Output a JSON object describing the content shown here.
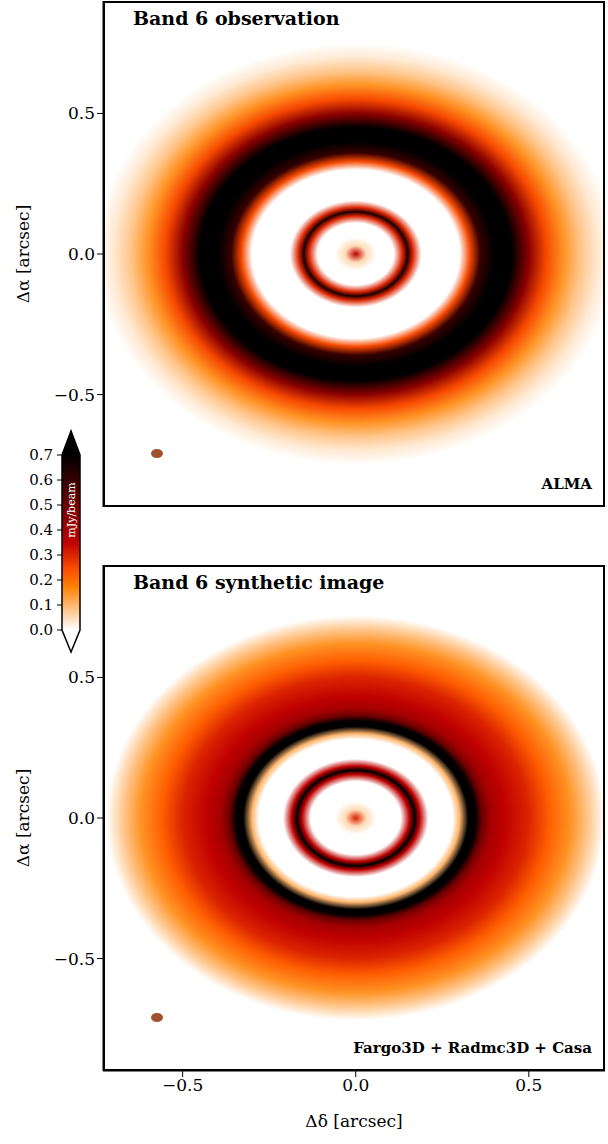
{
  "chart_data": [
    {
      "type": "heatmap",
      "title": "Band 6 observation",
      "annotation": "ALMA",
      "ylabel": "Δα [arcsec]",
      "xlim": [
        -0.73,
        0.72
      ],
      "ylim": [
        -0.9,
        0.9
      ],
      "yticks": [
        {
          "value": -0.5,
          "label": "−0.5"
        },
        {
          "value": 0,
          "label": "0.0"
        },
        0.5
      ],
      "tick_labels": "y",
      "image": {
        "center": [
          0,
          0
        ],
        "radius": [
          0,
          0.03,
          0.06,
          0.11,
          0.135,
          0.15,
          0.165,
          0.19,
          0.22,
          0.3,
          0.33,
          0.36,
          0.4,
          0.45,
          0.5,
          0.55,
          0.6,
          0.65,
          0.7,
          0.75
        ],
        "intensity": [
          0.35,
          0.05,
          0,
          0,
          0.3,
          0.65,
          0.3,
          0,
          0,
          0,
          0.25,
          0.6,
          0.75,
          0.7,
          0.45,
          0.25,
          0.15,
          0.08,
          0.03,
          0
        ]
      }
    },
    {
      "type": "heatmap",
      "title": "Band 6 synthetic image",
      "annotation": "Fargo3D + Radmc3D + Casa",
      "ylabel": "Δα [arcsec]",
      "xlabel": "Δδ [arcsec]",
      "xlim": [
        -0.73,
        0.72
      ],
      "ylim": [
        -0.9,
        0.9
      ],
      "xticks": [
        {
          "value": -0.5,
          "label": "−0.5"
        },
        {
          "value": 0,
          "label": "0.0"
        },
        0.5
      ],
      "yticks": [
        {
          "value": -0.5,
          "label": "−0.5"
        },
        {
          "value": 0,
          "label": "0.0"
        },
        0.5
      ],
      "image": {
        "center": [
          0,
          0
        ],
        "radius": [
          0,
          0.03,
          0.06,
          0.13,
          0.155,
          0.17,
          0.185,
          0.21,
          0.28,
          0.3,
          0.325,
          0.345,
          0.365,
          0.39,
          0.43,
          0.5,
          0.56,
          0.62,
          0.67,
          0.72
        ],
        "intensity": [
          0.3,
          0.05,
          0,
          0,
          0.35,
          0.8,
          0.35,
          0,
          0,
          0.1,
          0.8,
          0.8,
          0.5,
          0.4,
          0.35,
          0.3,
          0.22,
          0.15,
          0.08,
          0
        ]
      }
    }
  ],
  "colorbar": {
    "label": "mJy/beam",
    "lim": [
      0,
      0.7
    ],
    "ticks": [
      {
        "value": 0,
        "label": "0.0"
      },
      0.1,
      0.2,
      0.3,
      0.4,
      0.5,
      0.6,
      0.7
    ]
  }
}
